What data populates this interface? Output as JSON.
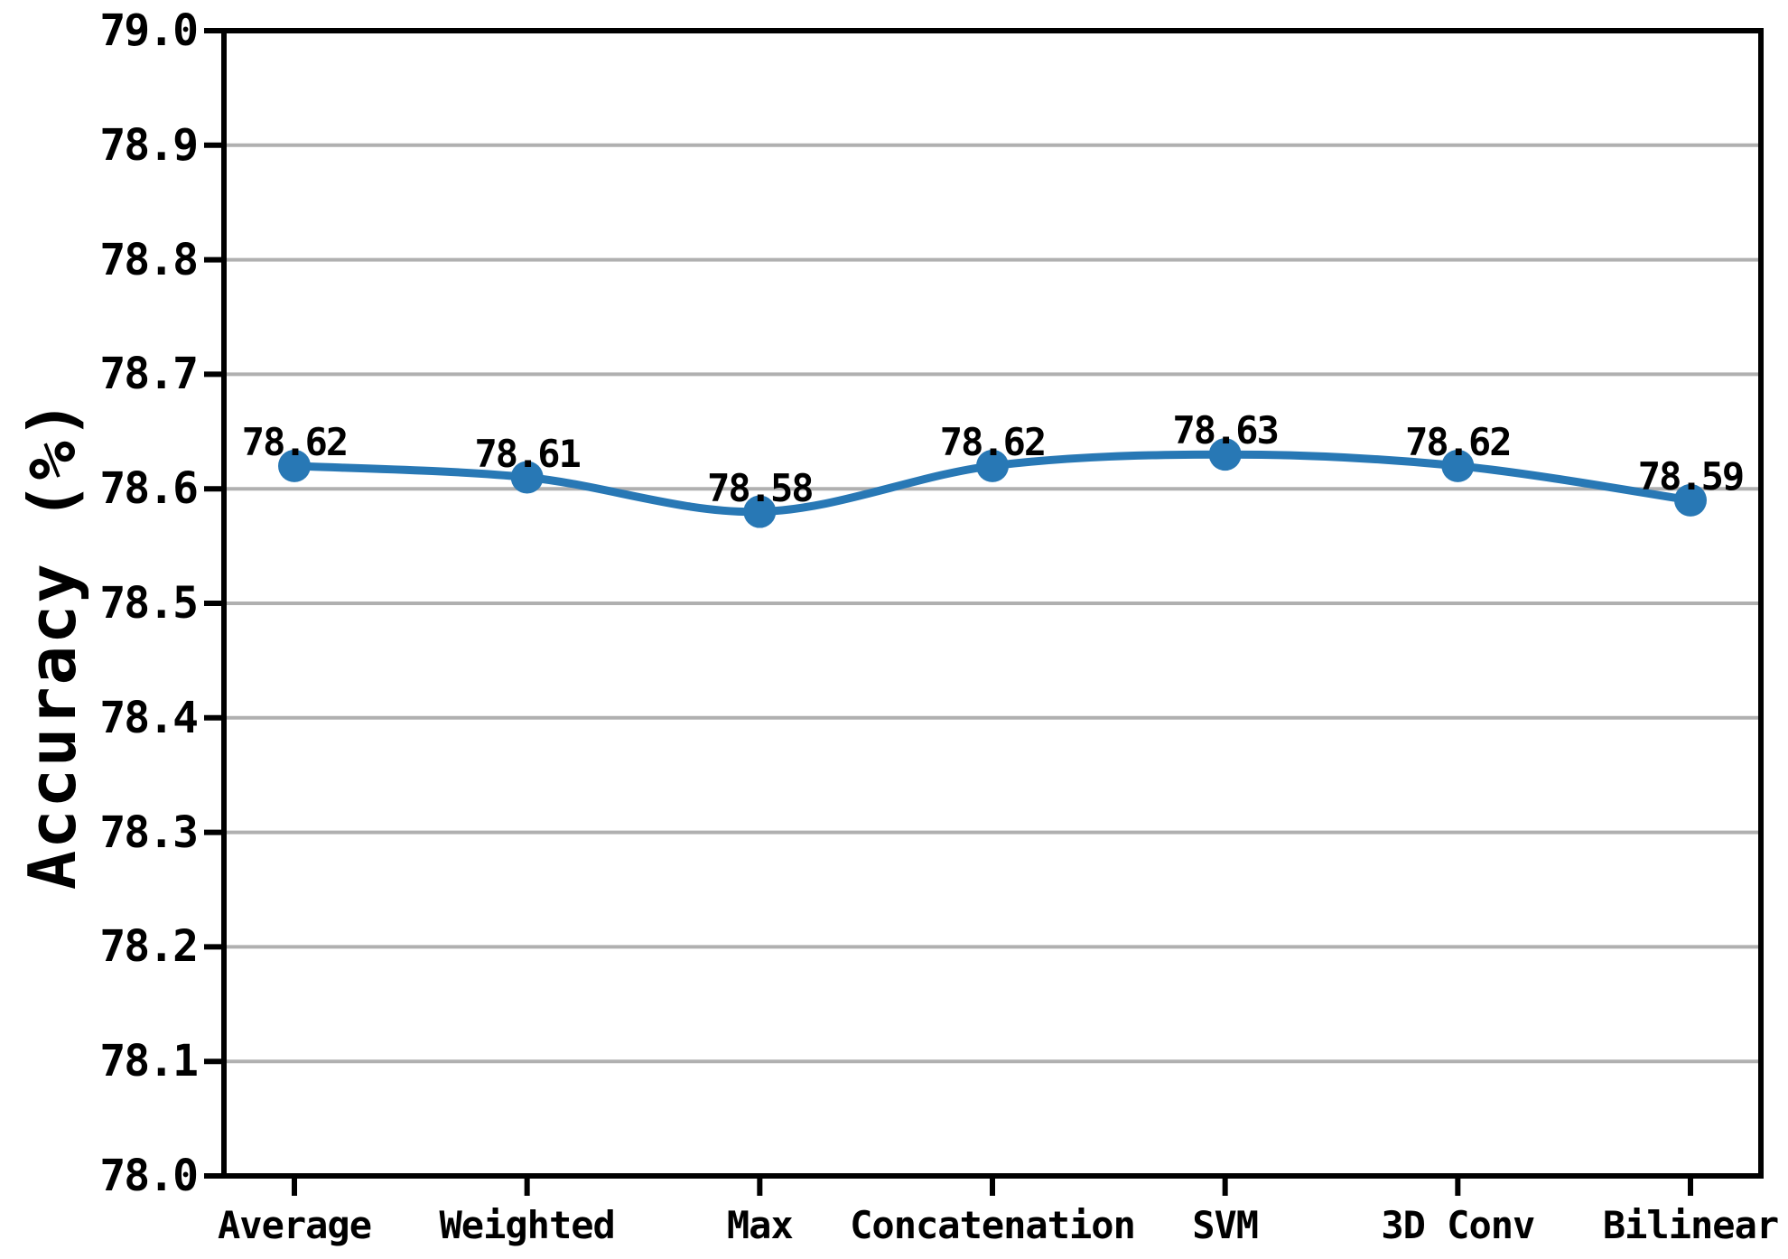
{
  "figure": {
    "background": "#ffffff",
    "text_color": "#000000"
  },
  "chart_data": {
    "type": "line",
    "title": "",
    "categories": [
      "Average",
      "Weighted",
      "Max",
      "Concatenation",
      "SVM",
      "3D Conv",
      "Bilinear"
    ],
    "values": [
      78.62,
      78.61,
      78.58,
      78.62,
      78.63,
      78.62,
      78.59
    ],
    "point_labels": [
      "78.62",
      "78.61",
      "78.58",
      "78.62",
      "78.63",
      "78.62",
      "78.59"
    ],
    "xlabel": "",
    "ylabel": "Accuracy (%)",
    "ylim": [
      78.0,
      79.0
    ],
    "ytick_step": 0.1,
    "ytick_labels": [
      "79.0",
      "78.9",
      "78.8",
      "78.7",
      "78.6",
      "78.5",
      "78.4",
      "78.3",
      "78.2",
      "78.1",
      "78.0"
    ],
    "grid": "horizontal-major",
    "legend_position": "none",
    "line_color": "#2878b5",
    "marker_color": "#2878b5",
    "grid_color": "#b0b0b0",
    "axis_color": "#000000"
  }
}
